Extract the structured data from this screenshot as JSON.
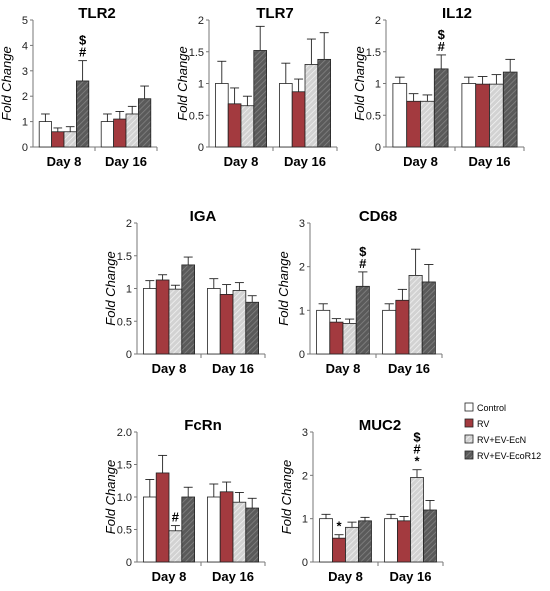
{
  "legend": [
    {
      "name": "Control",
      "color": "#ffffff"
    },
    {
      "name": "RV",
      "color": "#a33a3f"
    },
    {
      "name": "RV+EV-EcN",
      "color": "#c8c8c8"
    },
    {
      "name": "RV+EV-EcoR12",
      "color": "#555555"
    }
  ],
  "chart_data": [
    {
      "type": "bar",
      "title": "TLR2",
      "ylabel": "Fold Change",
      "categories": [
        "Day 8",
        "Day 16"
      ],
      "ylim": [
        0,
        5
      ],
      "yticks": [
        "0",
        "1",
        "2",
        "3",
        "4",
        "5"
      ],
      "series": [
        {
          "name": "Control",
          "values": [
            1.0,
            1.0
          ],
          "errors": [
            0.3,
            0.3
          ]
        },
        {
          "name": "RV",
          "values": [
            0.6,
            1.1
          ],
          "errors": [
            0.15,
            0.3
          ]
        },
        {
          "name": "RV+EV-EcN",
          "values": [
            0.6,
            1.3
          ],
          "errors": [
            0.2,
            0.3
          ]
        },
        {
          "name": "RV+EV-EcoR12",
          "values": [
            2.6,
            1.9
          ],
          "errors": [
            0.8,
            0.5
          ]
        }
      ],
      "annotations": [
        {
          "group": 0,
          "bar": 3,
          "text": [
            "$",
            "#"
          ]
        }
      ]
    },
    {
      "type": "bar",
      "title": "TLR7",
      "ylabel": "Fold Change",
      "categories": [
        "Day 8",
        "Day 16"
      ],
      "ylim": [
        0,
        2
      ],
      "yticks": [
        "0",
        "0.5",
        "1",
        "1.5",
        "2"
      ],
      "series": [
        {
          "name": "Control",
          "values": [
            1.0,
            1.0
          ],
          "errors": [
            0.35,
            0.32
          ]
        },
        {
          "name": "RV",
          "values": [
            0.68,
            0.87
          ],
          "errors": [
            0.25,
            0.2
          ]
        },
        {
          "name": "RV+EV-EcN",
          "values": [
            0.65,
            1.3
          ],
          "errors": [
            0.15,
            0.4
          ]
        },
        {
          "name": "RV+EV-EcoR12",
          "values": [
            1.52,
            1.38
          ],
          "errors": [
            0.38,
            0.42
          ]
        }
      ],
      "annotations": []
    },
    {
      "type": "bar",
      "title": "IL12",
      "ylabel": "Fold Change",
      "categories": [
        "Day 8",
        "Day 16"
      ],
      "ylim": [
        0,
        2
      ],
      "yticks": [
        "0",
        "0.5",
        "1",
        "1.5",
        "2"
      ],
      "series": [
        {
          "name": "Control",
          "values": [
            1.0,
            1.0
          ],
          "errors": [
            0.1,
            0.1
          ]
        },
        {
          "name": "RV",
          "values": [
            0.72,
            0.99
          ],
          "errors": [
            0.12,
            0.12
          ]
        },
        {
          "name": "RV+EV-EcN",
          "values": [
            0.72,
            0.99
          ],
          "errors": [
            0.1,
            0.15
          ]
        },
        {
          "name": "RV+EV-EcoR12",
          "values": [
            1.23,
            1.18
          ],
          "errors": [
            0.22,
            0.2
          ]
        }
      ],
      "annotations": [
        {
          "group": 0,
          "bar": 3,
          "text": [
            "$",
            "#"
          ]
        }
      ]
    },
    {
      "type": "bar",
      "title": "IGA",
      "ylabel": "Fold Change",
      "categories": [
        "Day 8",
        "Day 16"
      ],
      "ylim": [
        0,
        2
      ],
      "yticks": [
        "0",
        "0.5",
        "1",
        "1.5",
        "2"
      ],
      "series": [
        {
          "name": "Control",
          "values": [
            1.0,
            1.0
          ],
          "errors": [
            0.12,
            0.15
          ]
        },
        {
          "name": "RV",
          "values": [
            1.13,
            0.91
          ],
          "errors": [
            0.08,
            0.15
          ]
        },
        {
          "name": "RV+EV-EcN",
          "values": [
            0.99,
            0.97
          ],
          "errors": [
            0.06,
            0.12
          ]
        },
        {
          "name": "RV+EV-EcoR12",
          "values": [
            1.36,
            0.79
          ],
          "errors": [
            0.12,
            0.1
          ]
        }
      ],
      "annotations": []
    },
    {
      "type": "bar",
      "title": "CD68",
      "ylabel": "Fold Change",
      "categories": [
        "Day 8",
        "Day 16"
      ],
      "ylim": [
        0,
        3
      ],
      "yticks": [
        "0",
        "1",
        "2",
        "3"
      ],
      "series": [
        {
          "name": "Control",
          "values": [
            1.0,
            1.0
          ],
          "errors": [
            0.15,
            0.15
          ]
        },
        {
          "name": "RV",
          "values": [
            0.73,
            1.23
          ],
          "errors": [
            0.08,
            0.25
          ]
        },
        {
          "name": "RV+EV-EcN",
          "values": [
            0.7,
            1.8
          ],
          "errors": [
            0.1,
            0.6
          ]
        },
        {
          "name": "RV+EV-EcoR12",
          "values": [
            1.55,
            1.65
          ],
          "errors": [
            0.33,
            0.4
          ]
        }
      ],
      "annotations": [
        {
          "group": 0,
          "bar": 3,
          "text": [
            "$",
            "#"
          ]
        }
      ]
    },
    {
      "type": "bar",
      "title": "FcRn",
      "ylabel": "Fold Change",
      "categories": [
        "Day 8",
        "Day 16"
      ],
      "ylim": [
        0,
        2
      ],
      "yticks": [
        "0",
        "0.5",
        "1.0",
        "1.5",
        "2.0"
      ],
      "series": [
        {
          "name": "Control",
          "values": [
            1.0,
            1.0
          ],
          "errors": [
            0.27,
            0.2
          ]
        },
        {
          "name": "RV",
          "values": [
            1.37,
            1.08
          ],
          "errors": [
            0.27,
            0.15
          ]
        },
        {
          "name": "RV+EV-EcN",
          "values": [
            0.48,
            0.92
          ],
          "errors": [
            0.08,
            0.15
          ]
        },
        {
          "name": "RV+EV-EcoR12",
          "values": [
            1.0,
            0.83
          ],
          "errors": [
            0.15,
            0.15
          ]
        }
      ],
      "annotations": [
        {
          "group": 0,
          "bar": 2,
          "text": [
            "#"
          ]
        }
      ]
    },
    {
      "type": "bar",
      "title": "MUC2",
      "ylabel": "Fold Change",
      "categories": [
        "Day 8",
        "Day 16"
      ],
      "ylim": [
        0,
        3
      ],
      "yticks": [
        "0",
        "1",
        "2",
        "3"
      ],
      "series": [
        {
          "name": "Control",
          "values": [
            1.0,
            1.0
          ],
          "errors": [
            0.1,
            0.1
          ]
        },
        {
          "name": "RV",
          "values": [
            0.55,
            0.95
          ],
          "errors": [
            0.08,
            0.1
          ]
        },
        {
          "name": "RV+EV-EcN",
          "values": [
            0.8,
            1.95
          ],
          "errors": [
            0.12,
            0.18
          ]
        },
        {
          "name": "RV+EV-EcoR12",
          "values": [
            0.95,
            1.2
          ],
          "errors": [
            0.08,
            0.22
          ]
        }
      ],
      "annotations": [
        {
          "group": 0,
          "bar": 1,
          "text": [
            "*"
          ]
        },
        {
          "group": 1,
          "bar": 2,
          "text": [
            "$",
            "#",
            "*"
          ]
        }
      ]
    }
  ]
}
